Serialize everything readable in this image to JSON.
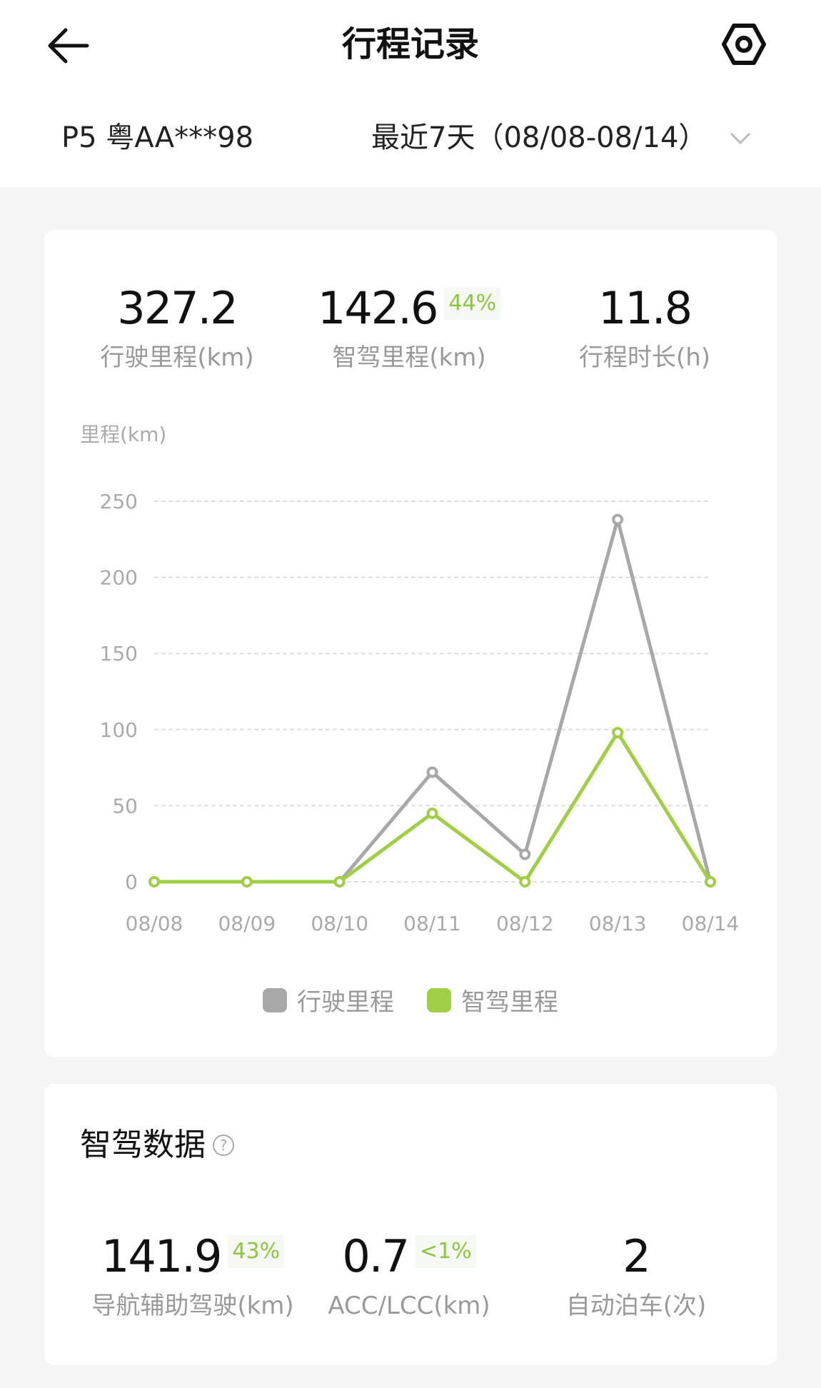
{
  "header": {
    "title": "行程记录",
    "back_icon": "arrow-left-icon",
    "settings_icon": "hexagon-nut-icon"
  },
  "filter": {
    "vehicle": "P5 粤AA***98",
    "range": "最近7天（08/08-08/14）"
  },
  "summary": [
    {
      "value": "327.2",
      "label": "行驶里程(km)"
    },
    {
      "value": "142.6",
      "badge": "44%",
      "label": "智驾里程(km)"
    },
    {
      "value": "11.8",
      "label": "行程时长(h)"
    }
  ],
  "chart_data": {
    "type": "line",
    "ylabel": "里程(km)",
    "categories": [
      "08/08",
      "08/09",
      "08/10",
      "08/11",
      "08/12",
      "08/13",
      "08/14"
    ],
    "yticks": [
      "0",
      "50",
      "100",
      "150",
      "200",
      "250"
    ],
    "ylim": [
      0,
      250
    ],
    "grid": true,
    "legend": "bottom",
    "series": [
      {
        "name": "行驶里程",
        "color": "#a8a8a8",
        "values": [
          0,
          0,
          0,
          72,
          18,
          238,
          0
        ]
      },
      {
        "name": "智驾里程",
        "color": "#9fcf44",
        "values": [
          0,
          0,
          0,
          45,
          0,
          98,
          0
        ]
      }
    ]
  },
  "adas": {
    "title": "智驾数据",
    "help_icon": "question-circle-icon",
    "stats": [
      {
        "value": "141.9",
        "badge": "43%",
        "label": "导航辅助驾驶(km)"
      },
      {
        "value": "0.7",
        "badge": "<1%",
        "label": "ACC/LCC(km)"
      },
      {
        "value": "2",
        "label": "自动泊车(次)"
      }
    ]
  }
}
